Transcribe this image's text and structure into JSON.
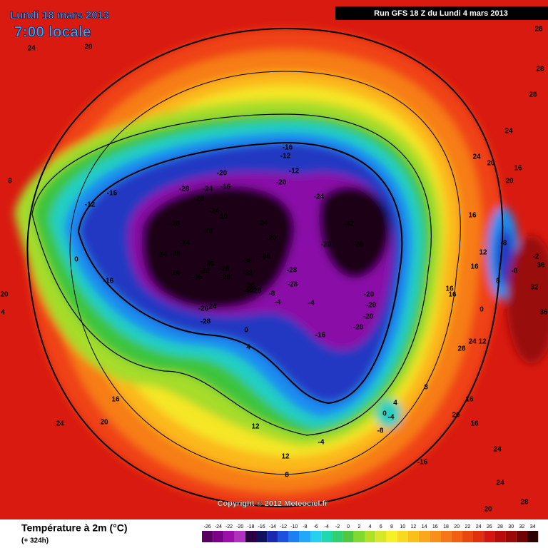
{
  "header": {
    "date": "Lundi 18 mars 2013",
    "time": "7:00 locale",
    "run": "Run GFS 18 Z du Lundi 4 mars 2013"
  },
  "copyright": "Copyright © 2012 Meteociel.fr",
  "footer": {
    "title": "Température à 2m (°C)",
    "lead": "(+ 324h)"
  },
  "colorbar": {
    "labels": [
      -26,
      -24,
      -22,
      -20,
      -18,
      -16,
      -14,
      -12,
      -10,
      -8,
      -6,
      -4,
      -2,
      0,
      2,
      4,
      6,
      8,
      10,
      12,
      14,
      16,
      18,
      20,
      22,
      24,
      26,
      28,
      30,
      32,
      34
    ]
  },
  "map_labels": [
    "24",
    "20",
    "28",
    "28",
    "28",
    "24",
    "24",
    "20",
    "16",
    "20",
    "16",
    "12",
    "16",
    "-8",
    "-8",
    "8",
    "32",
    "36",
    "-2",
    "36",
    "-16",
    "-12",
    "-12",
    "-20",
    "-20",
    "-28",
    "-24",
    "-16",
    "-28",
    "-24",
    "-20",
    "-24",
    "-32",
    "-28",
    "-20",
    "-24",
    "-20",
    "-24",
    "-20",
    "-28",
    "-24",
    "-28",
    "-36",
    "-32",
    "-36",
    "-36",
    "-24",
    "-36",
    "-28",
    "-28",
    "-32",
    "-28",
    "-36",
    "-40",
    "-28",
    "-28",
    "-16",
    "-16",
    "-12",
    "0",
    "-20",
    "-20",
    "-20",
    "-20",
    "-4",
    "-4",
    "-8",
    "-26",
    "24",
    "-28",
    "0",
    "-16",
    "4",
    "16",
    "16",
    "0",
    "24",
    "12",
    "28",
    "8",
    "4",
    "0",
    "-4",
    "-8",
    "16",
    "20",
    "16",
    "16",
    "24",
    "20",
    "12",
    "12",
    "8",
    "-4",
    "-16",
    "24",
    "24",
    "20",
    "28",
    "20",
    "4",
    "8"
  ]
}
